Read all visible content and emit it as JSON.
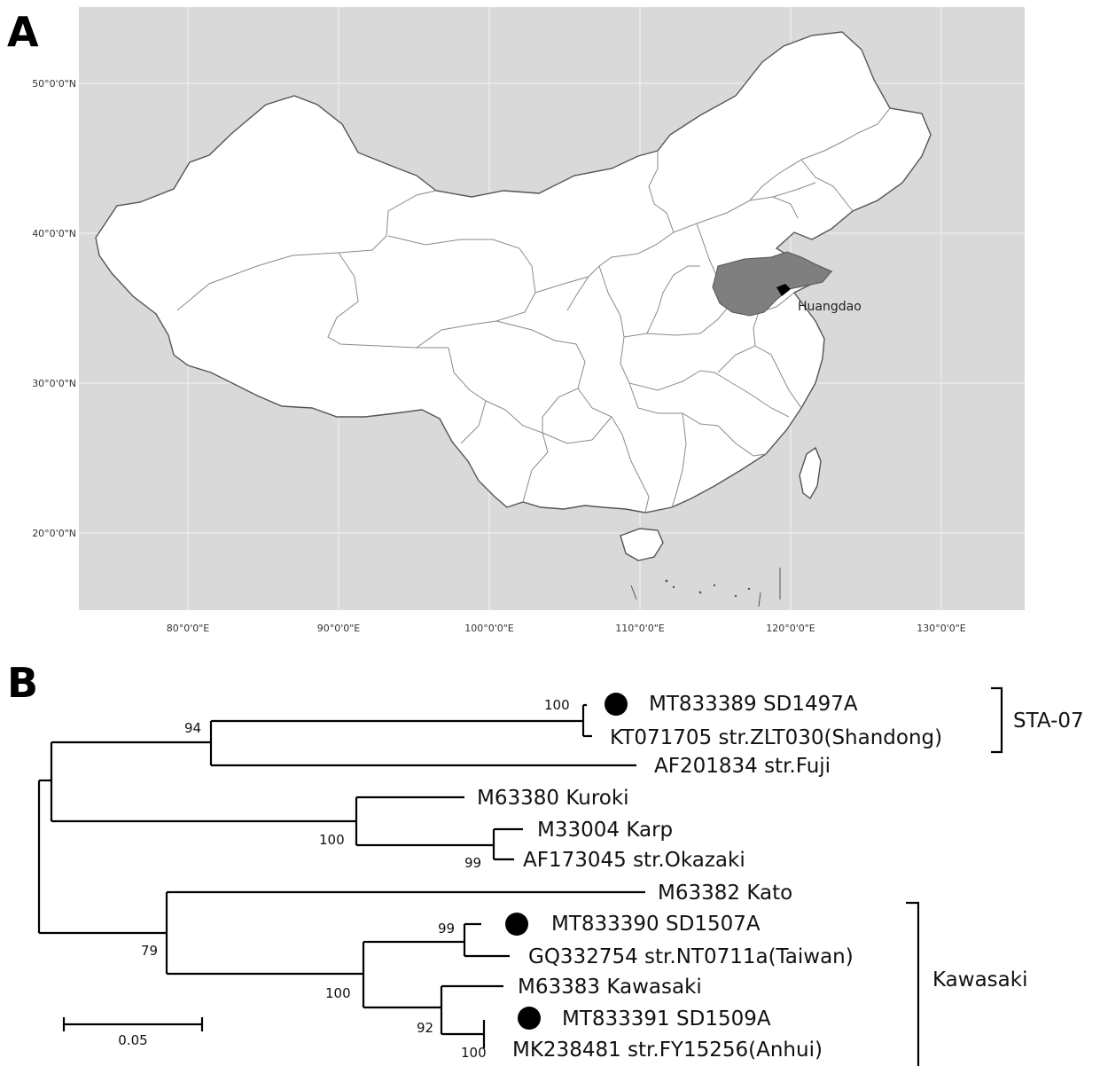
{
  "panels": {
    "a": {
      "letter": "A"
    },
    "b": {
      "letter": "B"
    }
  },
  "map": {
    "lat_labels": [
      "50°0'0\"N",
      "40°0'0\"N",
      "30°0'0\"N",
      "20°0'0\"N"
    ],
    "lon_labels": [
      "80°0'0\"E",
      "90°0'0\"E",
      "100°0'0\"E",
      "110°0'0\"E",
      "120°0'0\"E",
      "130°0'0\"E"
    ],
    "highlight_label": "Huangdao",
    "colors": {
      "background": "#d9d9d9",
      "land": "#ffffff",
      "highlight": "#7f7f7f",
      "site": "#000000"
    }
  },
  "tree": {
    "taxa": [
      {
        "label": "MT833389 SD1497A",
        "marked": true
      },
      {
        "label": "KT071705 str.ZLT030(Shandong)",
        "marked": false
      },
      {
        "label": "AF201834 str.Fuji",
        "marked": false
      },
      {
        "label": "M63380 Kuroki",
        "marked": false
      },
      {
        "label": "M33004 Karp",
        "marked": false
      },
      {
        "label": "AF173045 str.Okazaki",
        "marked": false
      },
      {
        "label": "M63382 Kato",
        "marked": false
      },
      {
        "label": "MT833390 SD1507A",
        "marked": true
      },
      {
        "label": "GQ332754 str.NT0711a(Taiwan)",
        "marked": false
      },
      {
        "label": "M63383 Kawasaki",
        "marked": false
      },
      {
        "label": "MT833391 SD1509A",
        "marked": true
      },
      {
        "label": "MK238481 str.FY15256(Anhui)",
        "marked": false
      }
    ],
    "bootstrap": [
      "100",
      "94",
      "100",
      "99",
      "79",
      "99",
      "100",
      "92",
      "100"
    ],
    "clades": [
      "STA-07",
      "Kawasaki"
    ],
    "scale_bar_label": "0.05"
  }
}
